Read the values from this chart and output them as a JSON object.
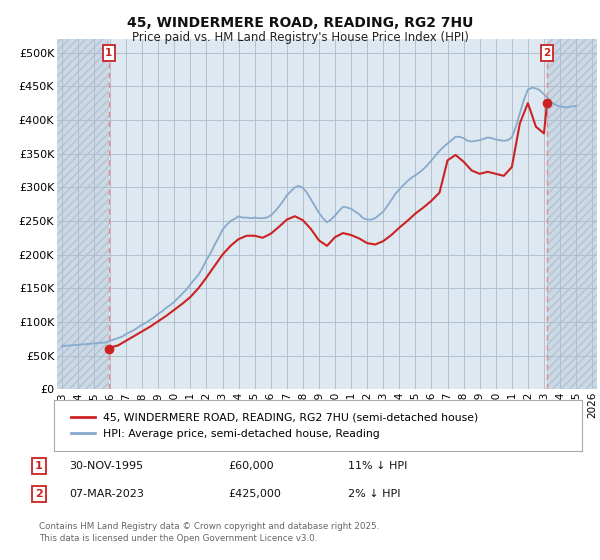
{
  "title1": "45, WINDERMERE ROAD, READING, RG2 7HU",
  "title2": "Price paid vs. HM Land Registry's House Price Index (HPI)",
  "annotation1_date": "30-NOV-1995",
  "annotation1_price": 60000,
  "annotation1_hpi_note": "11% ↓ HPI",
  "annotation2_date": "07-MAR-2023",
  "annotation2_price": 425000,
  "annotation2_hpi_note": "2% ↓ HPI",
  "legend_label1": "45, WINDERMERE ROAD, READING, RG2 7HU (semi-detached house)",
  "legend_label2": "HPI: Average price, semi-detached house, Reading",
  "footnote": "Contains HM Land Registry data © Crown copyright and database right 2025.\nThis data is licensed under the Open Government Licence v3.0.",
  "red_line_color": "#cc2222",
  "blue_line_color": "#88aacc",
  "vline_color": "#ee8888",
  "ylim": [
    0,
    520000
  ],
  "yticks": [
    0,
    50000,
    100000,
    150000,
    200000,
    250000,
    300000,
    350000,
    400000,
    450000,
    500000
  ],
  "xlim_start": 1992.7,
  "xlim_end": 2026.3,
  "sale_year1": 1995.92,
  "sale_year2": 2023.19,
  "sale_price1": 60000,
  "sale_price2": 425000,
  "hpi_years": [
    1993,
    1993.25,
    1993.5,
    1993.75,
    1994,
    1994.25,
    1994.5,
    1994.75,
    1995,
    1995.25,
    1995.5,
    1995.75,
    1996,
    1996.25,
    1996.5,
    1996.75,
    1997,
    1997.25,
    1997.5,
    1997.75,
    1998,
    1998.25,
    1998.5,
    1998.75,
    1999,
    1999.25,
    1999.5,
    1999.75,
    2000,
    2000.25,
    2000.5,
    2000.75,
    2001,
    2001.25,
    2001.5,
    2001.75,
    2002,
    2002.25,
    2002.5,
    2002.75,
    2003,
    2003.25,
    2003.5,
    2003.75,
    2004,
    2004.25,
    2004.5,
    2004.75,
    2005,
    2005.25,
    2005.5,
    2005.75,
    2006,
    2006.25,
    2006.5,
    2006.75,
    2007,
    2007.25,
    2007.5,
    2007.75,
    2008,
    2008.25,
    2008.5,
    2008.75,
    2009,
    2009.25,
    2009.5,
    2009.75,
    2010,
    2010.25,
    2010.5,
    2010.75,
    2011,
    2011.25,
    2011.5,
    2011.75,
    2012,
    2012.25,
    2012.5,
    2012.75,
    2013,
    2013.25,
    2013.5,
    2013.75,
    2014,
    2014.25,
    2014.5,
    2014.75,
    2015,
    2015.25,
    2015.5,
    2015.75,
    2016,
    2016.25,
    2016.5,
    2016.75,
    2017,
    2017.25,
    2017.5,
    2017.75,
    2018,
    2018.25,
    2018.5,
    2018.75,
    2019,
    2019.25,
    2019.5,
    2019.75,
    2020,
    2020.25,
    2020.5,
    2020.75,
    2021,
    2021.25,
    2021.5,
    2021.75,
    2022,
    2022.25,
    2022.5,
    2022.75,
    2023,
    2023.25,
    2023.5,
    2023.75,
    2024,
    2024.25,
    2024.5,
    2024.75,
    2025
  ],
  "hpi_values": [
    64000,
    64500,
    65000,
    65500,
    66000,
    66500,
    67000,
    67500,
    68000,
    68500,
    69000,
    69500,
    72000,
    74000,
    76000,
    78000,
    82000,
    85000,
    88000,
    92000,
    96000,
    99000,
    103000,
    107000,
    112000,
    116000,
    121000,
    125000,
    130000,
    136000,
    142000,
    148000,
    156000,
    163000,
    170000,
    180000,
    192000,
    202000,
    214000,
    225000,
    237000,
    244000,
    250000,
    253000,
    257000,
    255000,
    255000,
    254000,
    255000,
    254000,
    254000,
    255000,
    258000,
    264000,
    271000,
    279000,
    288000,
    294000,
    300000,
    302000,
    299000,
    292000,
    282000,
    272000,
    262000,
    254000,
    248000,
    252000,
    258000,
    265000,
    271000,
    270000,
    268000,
    264000,
    260000,
    254000,
    252000,
    252000,
    254000,
    259000,
    264000,
    272000,
    281000,
    290000,
    297000,
    303000,
    309000,
    314000,
    318000,
    322000,
    327000,
    333000,
    340000,
    347000,
    354000,
    360000,
    365000,
    370000,
    375000,
    375000,
    373000,
    369000,
    368000,
    369000,
    370000,
    372000,
    374000,
    373000,
    371000,
    370000,
    369000,
    370000,
    374000,
    390000,
    410000,
    430000,
    445000,
    448000,
    447000,
    444000,
    438000,
    432000,
    426000,
    422000,
    420000,
    419000,
    419000,
    420000,
    421000
  ],
  "red_years": [
    1995.92,
    1996,
    1996.5,
    1997,
    1997.5,
    1998,
    1998.5,
    1999,
    1999.5,
    2000,
    2000.5,
    2001,
    2001.5,
    2002,
    2002.5,
    2003,
    2003.5,
    2004,
    2004.5,
    2005,
    2005.5,
    2006,
    2006.5,
    2007,
    2007.5,
    2008,
    2008.5,
    2009,
    2009.5,
    2010,
    2010.5,
    2011,
    2011.5,
    2012,
    2012.5,
    2013,
    2013.5,
    2014,
    2014.5,
    2015,
    2015.5,
    2016,
    2016.5,
    2017,
    2017.5,
    2018,
    2018.5,
    2019,
    2019.5,
    2020,
    2020.5,
    2021,
    2021.5,
    2022,
    2022.5,
    2023,
    2023.19
  ],
  "red_values": [
    60000,
    62000,
    65000,
    72000,
    79000,
    86000,
    93000,
    101000,
    109000,
    118000,
    127000,
    137000,
    150000,
    166000,
    183000,
    200000,
    213000,
    223000,
    228000,
    228000,
    225000,
    231000,
    241000,
    252000,
    257000,
    251000,
    238000,
    221000,
    213000,
    226000,
    232000,
    229000,
    224000,
    217000,
    215000,
    220000,
    229000,
    240000,
    250000,
    261000,
    270000,
    280000,
    292000,
    340000,
    348000,
    338000,
    325000,
    320000,
    323000,
    320000,
    317000,
    330000,
    395000,
    425000,
    390000,
    380000,
    425000
  ],
  "xtick_years": [
    1993,
    1994,
    1995,
    1996,
    1997,
    1998,
    1999,
    2000,
    2001,
    2002,
    2003,
    2004,
    2005,
    2006,
    2007,
    2008,
    2009,
    2010,
    2011,
    2012,
    2013,
    2014,
    2015,
    2016,
    2017,
    2018,
    2019,
    2020,
    2021,
    2022,
    2023,
    2024,
    2025,
    2026
  ]
}
